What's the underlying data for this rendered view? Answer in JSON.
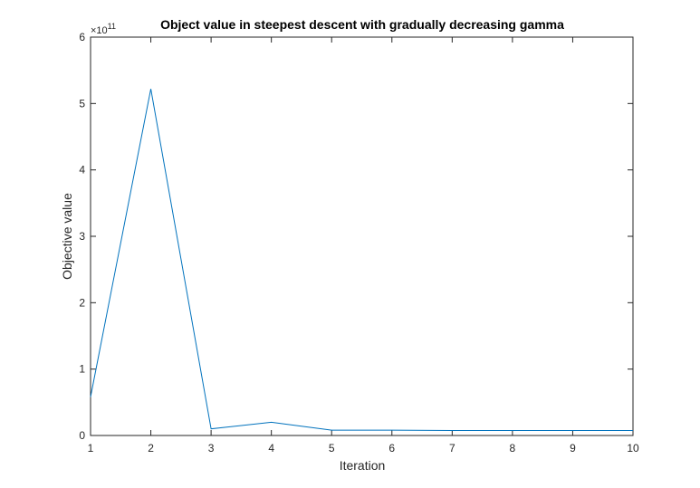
{
  "chart_data": {
    "type": "line",
    "title": "Object value in steepest descent with gradually decreasing gamma",
    "xlabel": "Iteration",
    "ylabel": "Objective value",
    "xlim": [
      1,
      10
    ],
    "ylim": [
      0,
      600000000000
    ],
    "y_exponent_base": "×10",
    "y_exponent_power": "11",
    "x_tick_labels": [
      "1",
      "2",
      "3",
      "4",
      "5",
      "6",
      "7",
      "8",
      "9",
      "10"
    ],
    "y_tick_labels": [
      "0",
      "1",
      "2",
      "3",
      "4",
      "5",
      "6"
    ],
    "grid": false,
    "series": [
      {
        "color": "#0072BD",
        "x": [
          1,
          2,
          3,
          4,
          5,
          6,
          7,
          8,
          9,
          10
        ],
        "y": [
          58000000000,
          522000000000,
          10000000000,
          20000000000,
          8000000000,
          8000000000,
          7500000000,
          7500000000,
          7500000000,
          7500000000
        ]
      }
    ]
  }
}
